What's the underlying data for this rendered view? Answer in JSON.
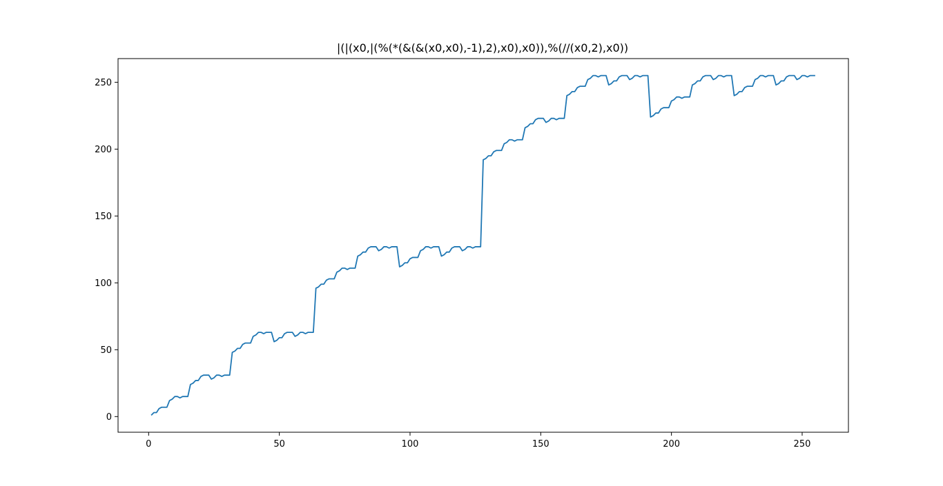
{
  "chart_data": {
    "type": "line",
    "title": "|(|(x0,|(%(*(&(&(x0,x0),-1),2),x0),x0)),%(//(x0,2),x0))",
    "xlabel": "",
    "ylabel": "",
    "xlim": [
      -11.7,
      267.7
    ],
    "ylim": [
      -11.7,
      267.7
    ],
    "xticks": [
      0,
      50,
      100,
      150,
      200,
      250
    ],
    "yticks": [
      0,
      50,
      100,
      150,
      200,
      250
    ],
    "grid": false,
    "series": [
      {
        "color": "#1f77b4",
        "expression": "x | (((-x*2) mod x) | x) | ((x div 2) mod x) for x = 1..255"
      }
    ]
  }
}
